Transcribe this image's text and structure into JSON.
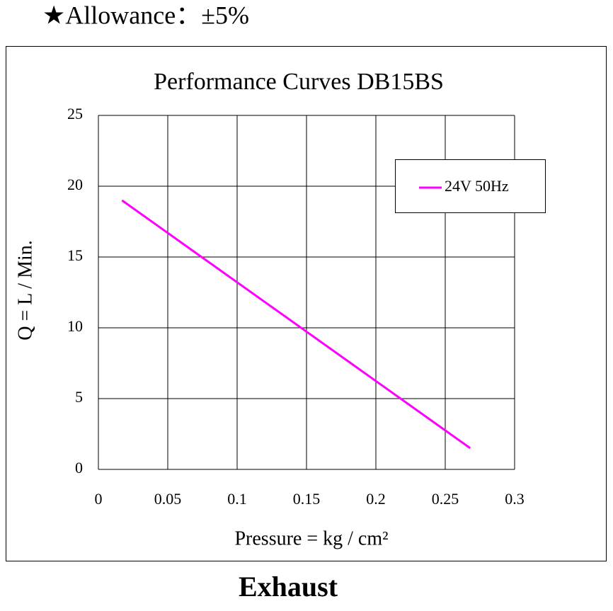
{
  "header": "★Allowance：±5%",
  "footer": "Exhaust",
  "chart_data": {
    "type": "line",
    "title": "Performance  Curves  DB15BS",
    "xlabel": "Pressure = kg / cm²",
    "ylabel": "Q = L / Min.",
    "xlim": [
      0,
      0.3
    ],
    "xticks": [
      0,
      0.05,
      0.1,
      0.15,
      0.2,
      0.25,
      0.3
    ],
    "ylim": [
      0,
      25
    ],
    "yticks": [
      0,
      5,
      10,
      15,
      20,
      25
    ],
    "grid": true,
    "legend": "upper right",
    "series": [
      {
        "name": "24V 50Hz",
        "color": "#ff00ff",
        "x": [
          0.017,
          0.268
        ],
        "values": [
          19,
          1.5
        ]
      }
    ]
  }
}
